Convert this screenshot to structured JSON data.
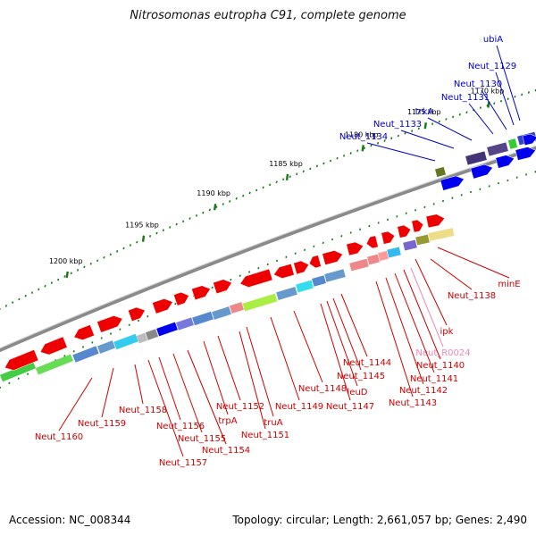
{
  "title": "Nitrosomonas eutropha C91, complete genome",
  "footer": {
    "accession_label": "Accession:",
    "accession": "NC_008344",
    "topology_label": "Topology:",
    "topology": "circular",
    "length_label": "Length:",
    "length": "2,661,057 bp",
    "genes_label": "Genes:",
    "genes": "2,490"
  },
  "colors": {
    "backbone": "#8a8a8a",
    "tick": "#1a7a1a",
    "forward_label": "#0000cc",
    "reverse_label": "#cc0000",
    "rna_label": "#ee88bb"
  },
  "scale": {
    "unit": "kbp",
    "major_ticks": [
      "1170 kbp",
      "1175 kbp",
      "1180 kbp",
      "1185 kbp",
      "1190 kbp",
      "1195 kbp",
      "1200 kbp"
    ]
  },
  "forward_genes": [
    "ubiA",
    "Neut_1129",
    "Neut_1130",
    "Neut_1131",
    "trkA",
    "Neut_1133",
    "Neut_1134"
  ],
  "reverse_genes": [
    "minE",
    "Neut_1138",
    "ipk",
    "Neut_R0024",
    "Neut_1140",
    "Neut_1141",
    "Neut_1142",
    "Neut_1143",
    "Neut_1144",
    "Neut_1145",
    "leuD",
    "Neut_1147",
    "Neut_1148",
    "Neut_1149",
    "truA",
    "Neut_1151",
    "Neut_1152",
    "trpA",
    "Neut_1154",
    "Neut_1155",
    "Neut_1156",
    "Neut_1157",
    "Neut_1158",
    "Neut_1159",
    "Neut_1160"
  ]
}
